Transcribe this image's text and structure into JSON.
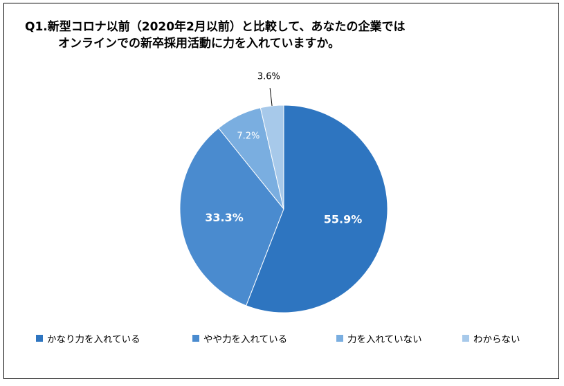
{
  "chart_data": {
    "type": "pie",
    "title_line1": "Q1.新型コロナ以前（2020年2月以前）と比較して、あなたの企業では",
    "title_line2": "オンラインでの新卒採用活動に力を入れていますか。",
    "slices": [
      {
        "label": "かなり力を入れている",
        "value": 55.9,
        "display": "55.9%",
        "color": "#2e75c0"
      },
      {
        "label": "やや力を入れている",
        "value": 33.3,
        "display": "33.3%",
        "color": "#4a8bcf"
      },
      {
        "label": "力を入れていない",
        "value": 7.2,
        "display": "7.2%",
        "color": "#7aaee0"
      },
      {
        "label": "わからない",
        "value": 3.6,
        "display": "3.6%",
        "color": "#a7c9ea"
      }
    ],
    "legend_position": "bottom"
  }
}
